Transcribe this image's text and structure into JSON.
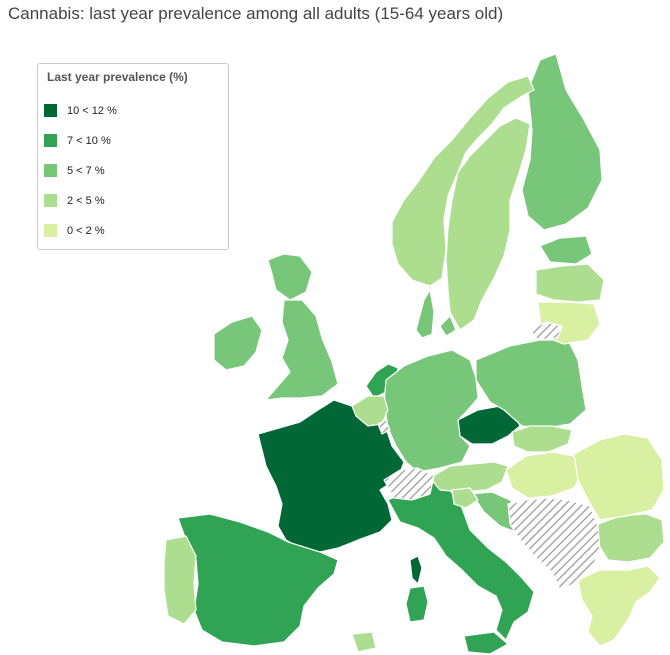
{
  "title": "Cannabis: last year prevalence among all adults (15-64 years old)",
  "legend": {
    "title": "Last year prevalence (%)",
    "items": [
      {
        "label": "10 < 12 %",
        "color": "#006837"
      },
      {
        "label": "7 < 10 %",
        "color": "#31a354"
      },
      {
        "label": "5 < 7 %",
        "color": "#78c679"
      },
      {
        "label": "2 < 5 %",
        "color": "#addd8e"
      },
      {
        "label": "0 < 2 %",
        "color": "#d9f0a3"
      }
    ],
    "no_data_pattern": "diagonal-hatch"
  },
  "colors": {
    "water": "#ffffff",
    "border": "#ffffff",
    "no_data": "#9a9a9a"
  },
  "regions": [
    {
      "name": "France",
      "class": "10 < 12 %"
    },
    {
      "name": "Corsica",
      "class": "10 < 12 %"
    },
    {
      "name": "Czechia",
      "class": "10 < 12 %"
    },
    {
      "name": "Netherlands",
      "class": "7 < 10 %"
    },
    {
      "name": "Spain",
      "class": "7 < 10 %"
    },
    {
      "name": "Italy",
      "class": "7 < 10 %"
    },
    {
      "name": "Sardinia",
      "class": "7 < 10 %"
    },
    {
      "name": "Sicily",
      "class": "7 < 10 %"
    },
    {
      "name": "Denmark",
      "class": "5 < 7 %"
    },
    {
      "name": "Germany",
      "class": "5 < 7 %"
    },
    {
      "name": "Finland",
      "class": "5 < 7 %"
    },
    {
      "name": "Estonia",
      "class": "5 < 7 %"
    },
    {
      "name": "Poland",
      "class": "5 < 7 %"
    },
    {
      "name": "Ireland",
      "class": "5 < 7 %"
    },
    {
      "name": "Scotland",
      "class": "5 < 7 %"
    },
    {
      "name": "England",
      "class": "5 < 7 %"
    },
    {
      "name": "Croatia",
      "class": "5 < 7 %"
    },
    {
      "name": "Norway",
      "class": "2 < 5 %"
    },
    {
      "name": "Sweden",
      "class": "2 < 5 %"
    },
    {
      "name": "Latvia",
      "class": "2 < 5 %"
    },
    {
      "name": "Portugal",
      "class": "2 < 5 %"
    },
    {
      "name": "Belgium",
      "class": "2 < 5 %"
    },
    {
      "name": "Austria",
      "class": "2 < 5 %"
    },
    {
      "name": "Slovakia",
      "class": "2 < 5 %"
    },
    {
      "name": "Slovenia",
      "class": "2 < 5 %"
    },
    {
      "name": "Bulgaria",
      "class": "2 < 5 %"
    },
    {
      "name": "Lithuania",
      "class": "0 < 2 %"
    },
    {
      "name": "Hungary",
      "class": "0 < 2 %"
    },
    {
      "name": "Romania",
      "class": "0 < 2 %"
    },
    {
      "name": "Greece",
      "class": "0 < 2 %"
    },
    {
      "name": "Malta",
      "class": "2 < 5 %"
    },
    {
      "name": "Switzerland",
      "class": "no data"
    },
    {
      "name": "Balkans",
      "class": "no data"
    },
    {
      "name": "Kaliningrad",
      "class": "no data"
    },
    {
      "name": "Luxembourg",
      "class": "no data"
    }
  ]
}
